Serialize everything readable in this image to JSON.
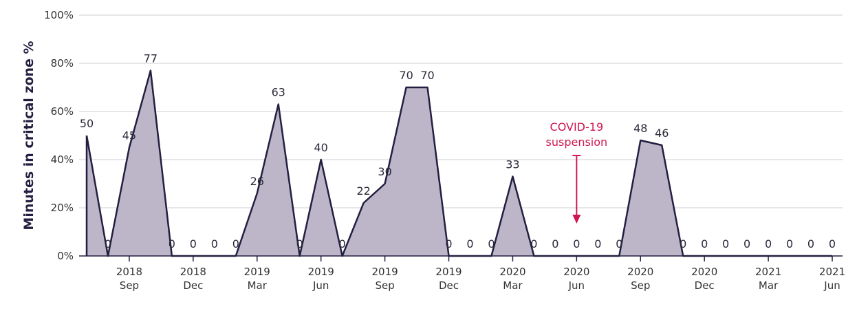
{
  "chart_data": {
    "type": "area",
    "y_label": "Minutes in critical zone %",
    "categories": [
      null,
      null,
      "2018 Sep",
      null,
      null,
      "2018 Dec",
      null,
      null,
      "2019 Mar",
      null,
      null,
      "2019 Jun",
      null,
      null,
      "2019 Sep",
      null,
      null,
      "2019 Dec",
      null,
      null,
      "2020 Mar",
      null,
      null,
      "2020 Jun",
      null,
      null,
      "2020 Sep",
      null,
      null,
      "2020 Dec",
      null,
      null,
      "2021 Mar",
      null,
      null,
      "2021 Jun"
    ],
    "values": [
      50,
      0,
      45,
      77,
      0,
      0,
      0,
      0,
      26,
      63,
      0,
      40,
      0,
      22,
      30,
      70,
      70,
      0,
      0,
      0,
      33,
      0,
      0,
      0,
      0,
      0,
      48,
      46,
      0,
      0,
      0,
      0,
      0,
      0,
      0,
      0
    ],
    "color": "#bdb5c8",
    "line_color": "#231f40",
    "ylim": [
      0,
      100
    ],
    "yticks": [
      {
        "value": 0,
        "label": "0%"
      },
      {
        "value": 20,
        "label": "20%"
      },
      {
        "value": 40,
        "label": "40%"
      },
      {
        "value": 60,
        "label": "60%"
      },
      {
        "value": 80,
        "label": "80%"
      },
      {
        "value": 100,
        "label": "100%"
      }
    ],
    "grid": true,
    "annotation": {
      "text": [
        "COVID-19",
        "suspension"
      ],
      "color": "#d0164f"
    }
  }
}
